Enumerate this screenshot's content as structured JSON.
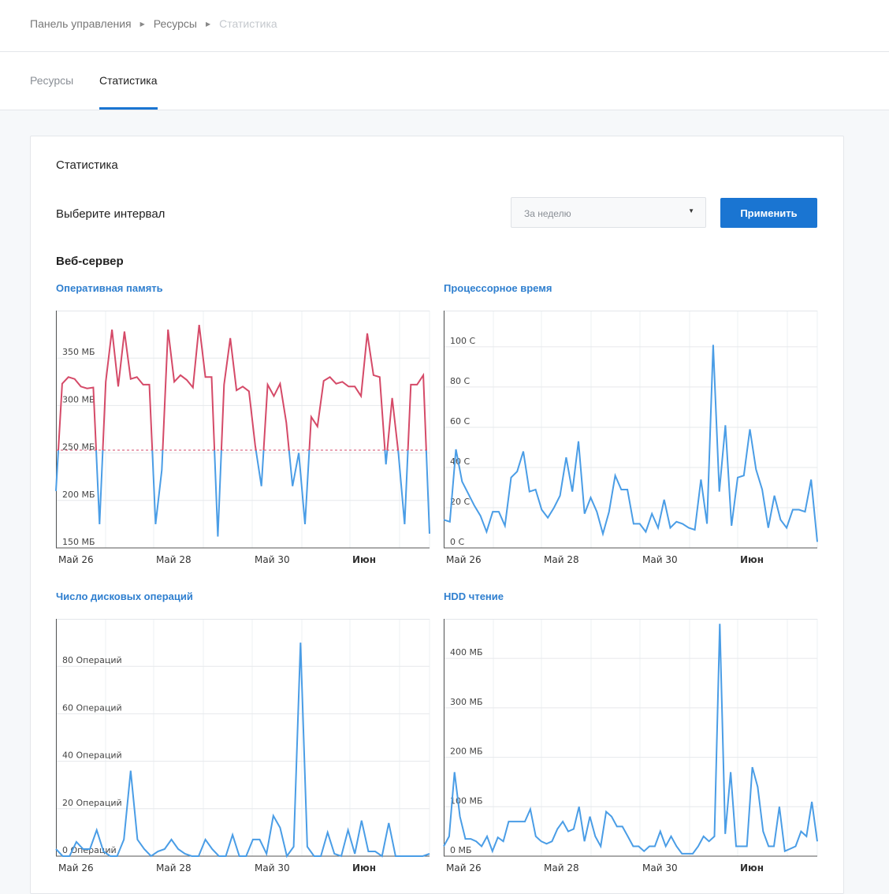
{
  "breadcrumb": {
    "items": [
      "Панель управления",
      "Ресурсы",
      "Статистика"
    ]
  },
  "tabs": [
    {
      "label": "Ресурсы",
      "active": false
    },
    {
      "label": "Статистика",
      "active": true
    }
  ],
  "card": {
    "title": "Статистика",
    "interval_label": "Выберите интервал",
    "interval_select": {
      "selected": "За неделю"
    },
    "apply_button": "Применить",
    "section_title": "Веб-сервер"
  },
  "colors": {
    "accent": "#1a75d2",
    "line_blue": "#4a9de6",
    "line_red": "#d54a68",
    "title_blue": "#2f7fcf"
  },
  "x_ticks": [
    "Май 26",
    "Май 28",
    "Май 30",
    "Июн"
  ],
  "chart_data": [
    {
      "type": "line",
      "title": "Оперативная память",
      "unit": "МБ",
      "ylim": [
        150,
        400
      ],
      "yticks": [
        150,
        200,
        250,
        300,
        350
      ],
      "ytick_labels": [
        "150 МБ",
        "200 МБ",
        "250 МБ",
        "300 МБ",
        "350 МБ"
      ],
      "threshold": 253,
      "threshold_color": "#d54a68",
      "xlabels": [
        "Май 26",
        "Май 28",
        "Май 30",
        "Июн"
      ],
      "values": [
        210,
        323,
        330,
        328,
        320,
        318,
        319,
        175,
        325,
        380,
        320,
        378,
        328,
        330,
        322,
        322,
        175,
        232,
        380,
        325,
        332,
        327,
        319,
        385,
        330,
        330,
        162,
        322,
        371,
        316,
        320,
        315,
        258,
        215,
        322,
        310,
        323,
        282,
        215,
        250,
        175,
        288,
        278,
        326,
        330,
        323,
        325,
        320,
        320,
        310,
        376,
        332,
        330,
        238,
        308,
        250,
        175,
        322,
        322,
        332,
        165
      ]
    },
    {
      "type": "line",
      "title": "Процессорное время",
      "unit": "С",
      "ylim": [
        0,
        118
      ],
      "yticks": [
        0,
        20,
        40,
        60,
        80,
        100
      ],
      "ytick_labels": [
        "0 С",
        "20 С",
        "40 С",
        "60 С",
        "80 С",
        "100 С"
      ],
      "xlabels": [
        "Май 26",
        "Май 28",
        "Май 30",
        "Июн"
      ],
      "values": [
        14,
        13,
        49,
        33,
        27,
        21,
        16,
        8,
        18,
        18,
        11,
        35,
        38,
        48,
        28,
        29,
        19,
        15,
        20,
        26,
        45,
        28,
        53,
        17,
        25,
        18,
        7,
        18,
        36,
        29,
        29,
        12,
        12,
        8,
        17,
        10,
        24,
        10,
        13,
        12,
        10,
        9,
        34,
        12,
        101,
        28,
        61,
        11,
        35,
        36,
        59,
        39,
        29,
        10,
        26,
        14,
        10,
        19,
        19,
        18,
        34,
        3
      ]
    },
    {
      "type": "line",
      "title": "Число дисковых операций",
      "unit": "Операций",
      "ylim": [
        0,
        100
      ],
      "yticks": [
        0,
        20,
        40,
        60,
        80
      ],
      "ytick_labels": [
        "0 Операций",
        "20 Операций",
        "40 Операций",
        "60 Операций",
        "80 Операций"
      ],
      "xlabels": [
        "Май 26",
        "Май 28",
        "Май 30",
        "Июн"
      ],
      "values": [
        3,
        0,
        0,
        6,
        3,
        3,
        11,
        2,
        0,
        0,
        7,
        36,
        7,
        3,
        0,
        2,
        3,
        7,
        3,
        1,
        0,
        0,
        7,
        3,
        0,
        0,
        9,
        0,
        0,
        7,
        7,
        1,
        17,
        12,
        0,
        4,
        90,
        4,
        0,
        0,
        10,
        1,
        0,
        11,
        1,
        15,
        2,
        2,
        0,
        14,
        0,
        0,
        0,
        0,
        0,
        1
      ]
    },
    {
      "type": "line",
      "title": "HDD чтение",
      "unit": "МБ",
      "ylim": [
        0,
        480
      ],
      "yticks": [
        0,
        100,
        200,
        300,
        400
      ],
      "ytick_labels": [
        "0 МБ",
        "100 МБ",
        "200 МБ",
        "300 МБ",
        "400 МБ"
      ],
      "xlabels": [
        "Май 26",
        "Май 28",
        "Май 30",
        "Июн"
      ],
      "values": [
        20,
        40,
        170,
        80,
        35,
        35,
        30,
        20,
        40,
        10,
        38,
        30,
        70,
        70,
        70,
        70,
        95,
        40,
        30,
        25,
        30,
        55,
        70,
        50,
        55,
        100,
        30,
        80,
        40,
        20,
        90,
        80,
        60,
        60,
        40,
        20,
        20,
        10,
        20,
        20,
        50,
        20,
        40,
        20,
        5,
        5,
        5,
        20,
        40,
        30,
        40,
        470,
        45,
        170,
        20,
        20,
        20,
        180,
        140,
        50,
        20,
        20,
        100,
        10,
        15,
        20,
        50,
        40,
        110,
        30
      ]
    }
  ]
}
